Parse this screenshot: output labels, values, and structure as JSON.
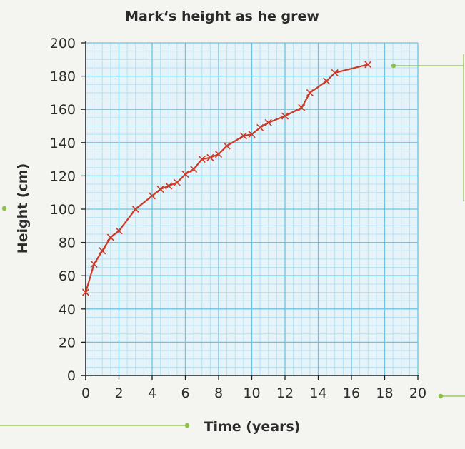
{
  "chart_data": {
    "type": "line",
    "title": "Mark‘s height as he grew",
    "xlabel": "Time (years)",
    "ylabel": "Height (cm)",
    "xlim": [
      0,
      20
    ],
    "ylim": [
      0,
      200
    ],
    "x_ticks": [
      "0",
      "2",
      "4",
      "6",
      "8",
      "10",
      "12",
      "14",
      "16",
      "18",
      "20"
    ],
    "y_ticks": [
      "0",
      "20",
      "40",
      "60",
      "80",
      "100",
      "120",
      "140",
      "160",
      "180",
      "200"
    ],
    "grid": true,
    "marker": "x",
    "series": [
      {
        "x": [
          0,
          0.5,
          1,
          1.5,
          2,
          3,
          4,
          4.5,
          5,
          5.5,
          6,
          6.5,
          7,
          7.5,
          8,
          8.5,
          9.5,
          10,
          10.5,
          11,
          12,
          13,
          13.5,
          14.5,
          15,
          17
        ],
        "y": [
          50,
          67,
          75,
          83,
          87,
          100,
          108,
          112,
          114,
          116,
          121,
          124,
          130,
          131,
          133,
          138,
          144,
          145,
          149,
          152,
          156,
          161,
          170,
          177,
          182,
          187
        ]
      }
    ]
  },
  "colors": {
    "line": "#cc3a28",
    "grid_major": "#6cc3e2",
    "grid_minor": "#b5e1f1",
    "grid_bg": "#e6f4fa",
    "callout": "#8cc04a"
  }
}
